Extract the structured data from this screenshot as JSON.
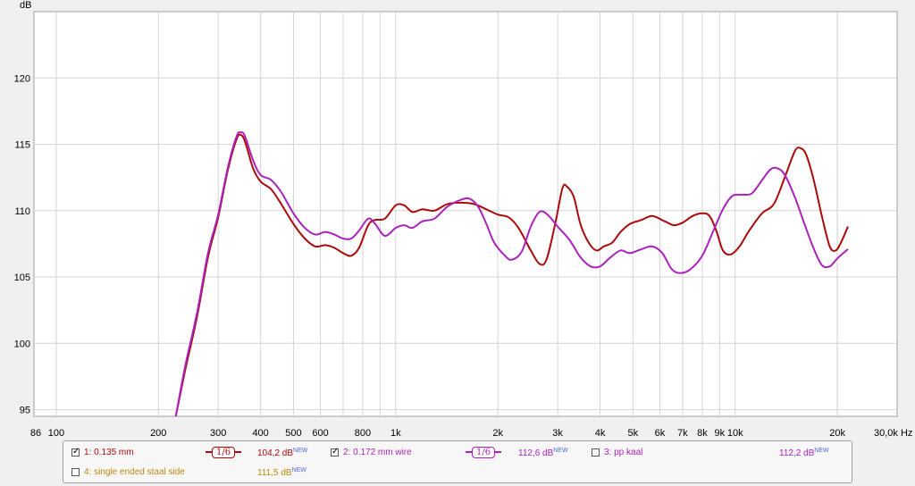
{
  "chart_data": {
    "type": "line",
    "xscale": "log",
    "xlabel": "Hz",
    "ylabel": "dB",
    "xlim": [
      86,
      30000
    ],
    "ylim": [
      94.5,
      125
    ],
    "yticks": [
      95,
      100,
      105,
      110,
      115,
      120
    ],
    "xticks": [
      {
        "v": 86,
        "label": "86"
      },
      {
        "v": 100,
        "label": "100"
      },
      {
        "v": 200,
        "label": "200"
      },
      {
        "v": 300,
        "label": "300"
      },
      {
        "v": 400,
        "label": "400"
      },
      {
        "v": 500,
        "label": "500"
      },
      {
        "v": 600,
        "label": "600"
      },
      {
        "v": 800,
        "label": "800"
      },
      {
        "v": 1000,
        "label": "1k"
      },
      {
        "v": 2000,
        "label": "2k"
      },
      {
        "v": 3000,
        "label": "3k"
      },
      {
        "v": 4000,
        "label": "4k"
      },
      {
        "v": 5000,
        "label": "5k"
      },
      {
        "v": 6000,
        "label": "6k"
      },
      {
        "v": 7000,
        "label": "7k"
      },
      {
        "v": 8000,
        "label": "8k"
      },
      {
        "v": 9000,
        "label": "9k"
      },
      {
        "v": 10000,
        "label": "10k"
      },
      {
        "v": 20000,
        "label": "20k"
      },
      {
        "v": 30000,
        "label": "30,0k Hz"
      }
    ],
    "grid": true,
    "series": [
      {
        "name": "1: 0.135 mm",
        "color": "#aa0a0a",
        "points": [
          [
            225,
            94.5
          ],
          [
            240,
            98
          ],
          [
            260,
            102
          ],
          [
            280,
            106.5
          ],
          [
            300,
            109.5
          ],
          [
            320,
            113
          ],
          [
            340,
            115.4
          ],
          [
            350,
            115.7
          ],
          [
            360,
            115.2
          ],
          [
            380,
            113.2
          ],
          [
            400,
            112.2
          ],
          [
            430,
            111.6
          ],
          [
            460,
            110.5
          ],
          [
            500,
            109
          ],
          [
            540,
            107.9
          ],
          [
            580,
            107.3
          ],
          [
            620,
            107.4
          ],
          [
            660,
            107.2
          ],
          [
            700,
            106.8
          ],
          [
            740,
            106.6
          ],
          [
            780,
            107.2
          ],
          [
            830,
            108.9
          ],
          [
            870,
            109.3
          ],
          [
            930,
            109.4
          ],
          [
            1000,
            110.4
          ],
          [
            1060,
            110.4
          ],
          [
            1120,
            109.9
          ],
          [
            1200,
            110.1
          ],
          [
            1300,
            110.0
          ],
          [
            1420,
            110.5
          ],
          [
            1550,
            110.6
          ],
          [
            1700,
            110.5
          ],
          [
            1850,
            110.1
          ],
          [
            2000,
            109.7
          ],
          [
            2150,
            109.5
          ],
          [
            2300,
            108.7
          ],
          [
            2500,
            107
          ],
          [
            2650,
            106
          ],
          [
            2780,
            106.3
          ],
          [
            2950,
            109
          ],
          [
            3100,
            111.7
          ],
          [
            3200,
            111.8
          ],
          [
            3350,
            111.0
          ],
          [
            3500,
            109
          ],
          [
            3700,
            107.6
          ],
          [
            3900,
            107.0
          ],
          [
            4100,
            107.3
          ],
          [
            4350,
            107.6
          ],
          [
            4600,
            108.4
          ],
          [
            4900,
            109
          ],
          [
            5300,
            109.3
          ],
          [
            5700,
            109.6
          ],
          [
            6200,
            109.2
          ],
          [
            6600,
            108.9
          ],
          [
            7000,
            109.1
          ],
          [
            7500,
            109.6
          ],
          [
            8000,
            109.8
          ],
          [
            8400,
            109.6
          ],
          [
            8800,
            108.5
          ],
          [
            9200,
            107.0
          ],
          [
            9700,
            106.7
          ],
          [
            10300,
            107.3
          ],
          [
            11000,
            108.5
          ],
          [
            12000,
            109.8
          ],
          [
            13000,
            110.5
          ],
          [
            14000,
            112.5
          ],
          [
            15000,
            114.5
          ],
          [
            15600,
            114.7
          ],
          [
            16200,
            114.2
          ],
          [
            17000,
            112.4
          ],
          [
            18000,
            109.6
          ],
          [
            19000,
            107.3
          ],
          [
            19800,
            107.0
          ],
          [
            20500,
            107.6
          ],
          [
            21500,
            108.8
          ]
        ]
      },
      {
        "name": "2: 0.172 mm wire",
        "color": "#aa22bb",
        "points": [
          [
            225,
            94.5
          ],
          [
            240,
            98.3
          ],
          [
            260,
            102.3
          ],
          [
            280,
            106.8
          ],
          [
            300,
            109.7
          ],
          [
            320,
            113.2
          ],
          [
            340,
            115.6
          ],
          [
            350,
            115.9
          ],
          [
            360,
            115.6
          ],
          [
            380,
            113.8
          ],
          [
            400,
            112.7
          ],
          [
            430,
            112.3
          ],
          [
            460,
            111.4
          ],
          [
            500,
            109.8
          ],
          [
            540,
            108.7
          ],
          [
            580,
            108.2
          ],
          [
            620,
            108.4
          ],
          [
            660,
            108.2
          ],
          [
            700,
            107.9
          ],
          [
            740,
            107.9
          ],
          [
            780,
            108.5
          ],
          [
            830,
            109.4
          ],
          [
            870,
            109.0
          ],
          [
            930,
            108.1
          ],
          [
            1000,
            108.7
          ],
          [
            1060,
            108.9
          ],
          [
            1120,
            108.7
          ],
          [
            1200,
            109.2
          ],
          [
            1300,
            109.4
          ],
          [
            1420,
            110.3
          ],
          [
            1550,
            110.8
          ],
          [
            1650,
            110.9
          ],
          [
            1750,
            110.3
          ],
          [
            1850,
            109.0
          ],
          [
            1950,
            107.6
          ],
          [
            2100,
            106.6
          ],
          [
            2200,
            106.3
          ],
          [
            2350,
            106.9
          ],
          [
            2500,
            108.8
          ],
          [
            2650,
            109.9
          ],
          [
            2800,
            109.7
          ],
          [
            3000,
            108.8
          ],
          [
            3250,
            107.8
          ],
          [
            3500,
            106.5
          ],
          [
            3750,
            105.8
          ],
          [
            4000,
            105.8
          ],
          [
            4300,
            106.5
          ],
          [
            4600,
            107.0
          ],
          [
            4900,
            106.8
          ],
          [
            5300,
            107.1
          ],
          [
            5700,
            107.3
          ],
          [
            6100,
            106.8
          ],
          [
            6500,
            105.6
          ],
          [
            6900,
            105.3
          ],
          [
            7400,
            105.6
          ],
          [
            8000,
            106.6
          ],
          [
            8600,
            108.4
          ],
          [
            9200,
            110.1
          ],
          [
            9800,
            111.1
          ],
          [
            10500,
            111.2
          ],
          [
            11200,
            111.3
          ],
          [
            12000,
            112.3
          ],
          [
            12700,
            113.1
          ],
          [
            13300,
            113.2
          ],
          [
            14000,
            112.7
          ],
          [
            15000,
            111.0
          ],
          [
            16000,
            109.0
          ],
          [
            17000,
            107.2
          ],
          [
            18000,
            105.9
          ],
          [
            19000,
            105.8
          ],
          [
            20000,
            106.4
          ],
          [
            21500,
            107.1
          ]
        ]
      }
    ]
  },
  "legend": {
    "items": [
      {
        "label": "1: 0.135 mm",
        "checked": true,
        "color": "#aa0a0a",
        "smoothing": "1/6",
        "level": "104,2 dB",
        "badge": "NEW"
      },
      {
        "label": "2: 0.172 mm wire",
        "checked": true,
        "color": "#aa22bb",
        "smoothing": "1/6",
        "level": "112,6 dB",
        "badge": "NEW"
      },
      {
        "label": "3: pp kaal",
        "checked": false,
        "color": "#aa22bb",
        "level": "112,2 dB",
        "badge": "NEW"
      },
      {
        "label": "4: single ended staal side",
        "checked": false,
        "color": "#b88a10",
        "level": "111,5 dB",
        "badge": "NEW"
      }
    ]
  }
}
